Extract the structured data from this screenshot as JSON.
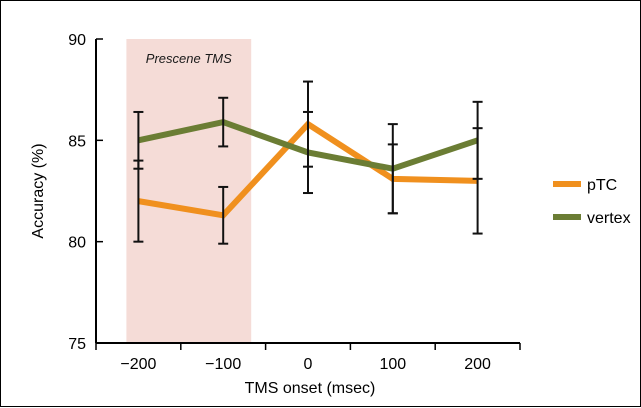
{
  "chart_data": {
    "type": "line",
    "title": "",
    "xlabel": "TMS onset (msec)",
    "ylabel": "Accuracy (%)",
    "categories": [
      "−200",
      "−100",
      "0",
      "100",
      "200"
    ],
    "x": [
      -200,
      -100,
      0,
      100,
      200
    ],
    "ylim": [
      75,
      90
    ],
    "yticks": [
      "75",
      "80",
      "85",
      "90"
    ],
    "grid": false,
    "legend_position": "right",
    "series": [
      {
        "name": "pTC",
        "color": "#f0901e",
        "values": [
          82.0,
          81.3,
          85.8,
          83.1,
          83.0
        ],
        "error": [
          2.0,
          1.4,
          2.1,
          1.7,
          2.6
        ]
      },
      {
        "name": "vertex",
        "color": "#6b7d34",
        "values": [
          85.0,
          85.9,
          84.4,
          83.6,
          85.0
        ],
        "error": [
          1.4,
          1.2,
          2.0,
          2.2,
          1.9
        ]
      }
    ],
    "shaded_region": {
      "label": "Prescene TMS",
      "x_from": -200,
      "x_to": -100,
      "color": "#f5dcd7"
    }
  }
}
